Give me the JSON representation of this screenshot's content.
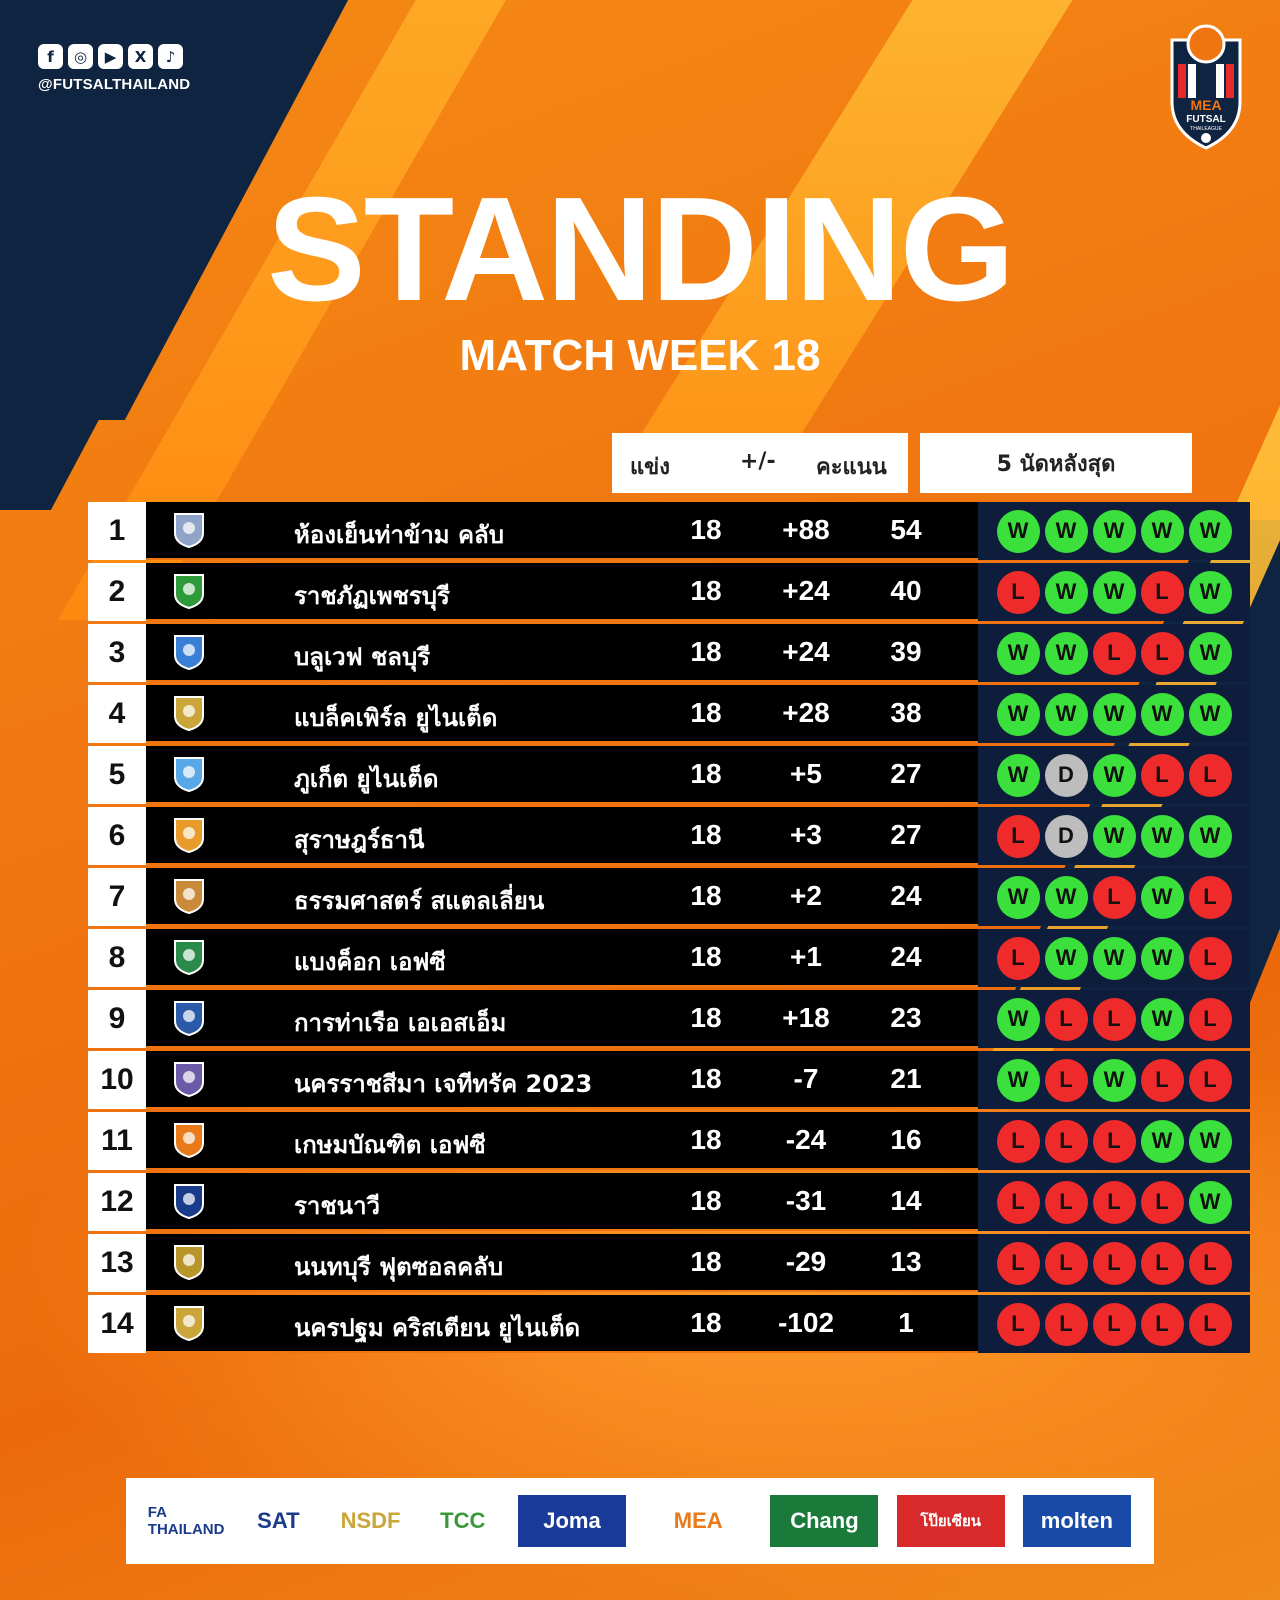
{
  "social": {
    "icons": [
      "facebook-icon",
      "instagram-icon",
      "youtube-icon",
      "x-icon",
      "tiktok-icon"
    ],
    "handle": "@FUTSALTHAILAND"
  },
  "league_logo": {
    "line1": "MEA",
    "line2": "FUTSAL",
    "line3": "THAILEAGUE"
  },
  "title": "STANDING",
  "subtitle": "MATCH WEEK 18",
  "headers": {
    "played": "แข่ง",
    "gd": "+/-",
    "points": "คะแนน",
    "form": "5 นัดหลังสุด"
  },
  "colors": {
    "win": "#3ce03c",
    "loss": "#ef2a2a",
    "draw": "#bdbdbd",
    "form_bg": "#0d1d3b",
    "accent": "#f07410"
  },
  "teams": [
    {
      "rank": "1",
      "name": "ห้องเย็นท่าข้าม คลับ",
      "played": "18",
      "gd": "+88",
      "points": "54",
      "form": [
        "W",
        "W",
        "W",
        "W",
        "W"
      ],
      "crest_color": "#8fa4c8"
    },
    {
      "rank": "2",
      "name": "ราชภัฏเพชรบุรี",
      "played": "18",
      "gd": "+24",
      "points": "40",
      "form": [
        "L",
        "W",
        "W",
        "L",
        "W"
      ],
      "crest_color": "#2e9a3a"
    },
    {
      "rank": "3",
      "name": "บลูเวฟ ชลบุรี",
      "played": "18",
      "gd": "+24",
      "points": "39",
      "form": [
        "W",
        "W",
        "L",
        "L",
        "W"
      ],
      "crest_color": "#3a7fd6"
    },
    {
      "rank": "4",
      "name": "แบล็คเพิร์ล ยูไนเต็ด",
      "played": "18",
      "gd": "+28",
      "points": "38",
      "form": [
        "W",
        "W",
        "W",
        "W",
        "W"
      ],
      "crest_color": "#c9a53a"
    },
    {
      "rank": "5",
      "name": "ภูเก็ต ยูไนเต็ด",
      "played": "18",
      "gd": "+5",
      "points": "27",
      "form": [
        "W",
        "D",
        "W",
        "L",
        "L"
      ],
      "crest_color": "#58a8e8"
    },
    {
      "rank": "6",
      "name": "สุราษฎร์ธานี",
      "played": "18",
      "gd": "+3",
      "points": "27",
      "form": [
        "L",
        "D",
        "W",
        "W",
        "W"
      ],
      "crest_color": "#e89a2a"
    },
    {
      "rank": "7",
      "name": "ธรรมศาสตร์ สแตลเลี่ยน",
      "played": "18",
      "gd": "+2",
      "points": "24",
      "form": [
        "W",
        "W",
        "L",
        "W",
        "L"
      ],
      "crest_color": "#c98a3a"
    },
    {
      "rank": "8",
      "name": "แบงค็อก เอฟซี",
      "played": "18",
      "gd": "+1",
      "points": "24",
      "form": [
        "L",
        "W",
        "W",
        "W",
        "L"
      ],
      "crest_color": "#2a8a4a"
    },
    {
      "rank": "9",
      "name": "การท่าเรือ เอเอสเอ็ม",
      "played": "18",
      "gd": "+18",
      "points": "23",
      "form": [
        "W",
        "L",
        "L",
        "W",
        "L"
      ],
      "crest_color": "#2a5aa8"
    },
    {
      "rank": "10",
      "name": "นครราชสีมา เจทีทรัค 2023",
      "played": "18",
      "gd": "-7",
      "points": "21",
      "form": [
        "W",
        "L",
        "W",
        "L",
        "L"
      ],
      "crest_color": "#6a5aa8"
    },
    {
      "rank": "11",
      "name": "เกษมบัณฑิต เอฟซี",
      "played": "18",
      "gd": "-24",
      "points": "16",
      "form": [
        "L",
        "L",
        "L",
        "W",
        "W"
      ],
      "crest_color": "#e87a1a"
    },
    {
      "rank": "12",
      "name": "ราชนาวี",
      "played": "18",
      "gd": "-31",
      "points": "14",
      "form": [
        "L",
        "L",
        "L",
        "L",
        "W"
      ],
      "crest_color": "#1a3a8a"
    },
    {
      "rank": "13",
      "name": "นนทบุรี ฟุตซอลคลับ",
      "played": "18",
      "gd": "-29",
      "points": "13",
      "form": [
        "L",
        "L",
        "L",
        "L",
        "L"
      ],
      "crest_color": "#b8952a"
    },
    {
      "rank": "14",
      "name": "นครปฐม คริสเตียน ยูไนเต็ด",
      "played": "18",
      "gd": "-102",
      "points": "1",
      "form": [
        "L",
        "L",
        "L",
        "L",
        "L"
      ],
      "crest_color": "#c9a53a"
    }
  ],
  "sponsors": [
    {
      "name": "FA THAILAND",
      "key": "fa-thailand-logo",
      "color": "#1a3a8a"
    },
    {
      "name": "SAT",
      "key": "sat-logo",
      "color": "#1a3a8a"
    },
    {
      "name": "NSDF",
      "key": "nsdf-logo",
      "color": "#c9a53a"
    },
    {
      "name": "TCC",
      "key": "tcc-logo",
      "color": "#3a9a3a"
    },
    {
      "name": "Joma",
      "key": "joma-logo",
      "color": "#1a3a9a"
    },
    {
      "name": "MEA",
      "key": "mea-logo",
      "color": "#e87a1a"
    },
    {
      "name": "Chang",
      "key": "chang-logo",
      "color": "#1a7a3a"
    },
    {
      "name": "โป๊ยเซียน",
      "key": "poysian-logo",
      "color": "#d82a2a"
    },
    {
      "name": "molten",
      "key": "molten-logo",
      "color": "#1a4aa8"
    }
  ]
}
